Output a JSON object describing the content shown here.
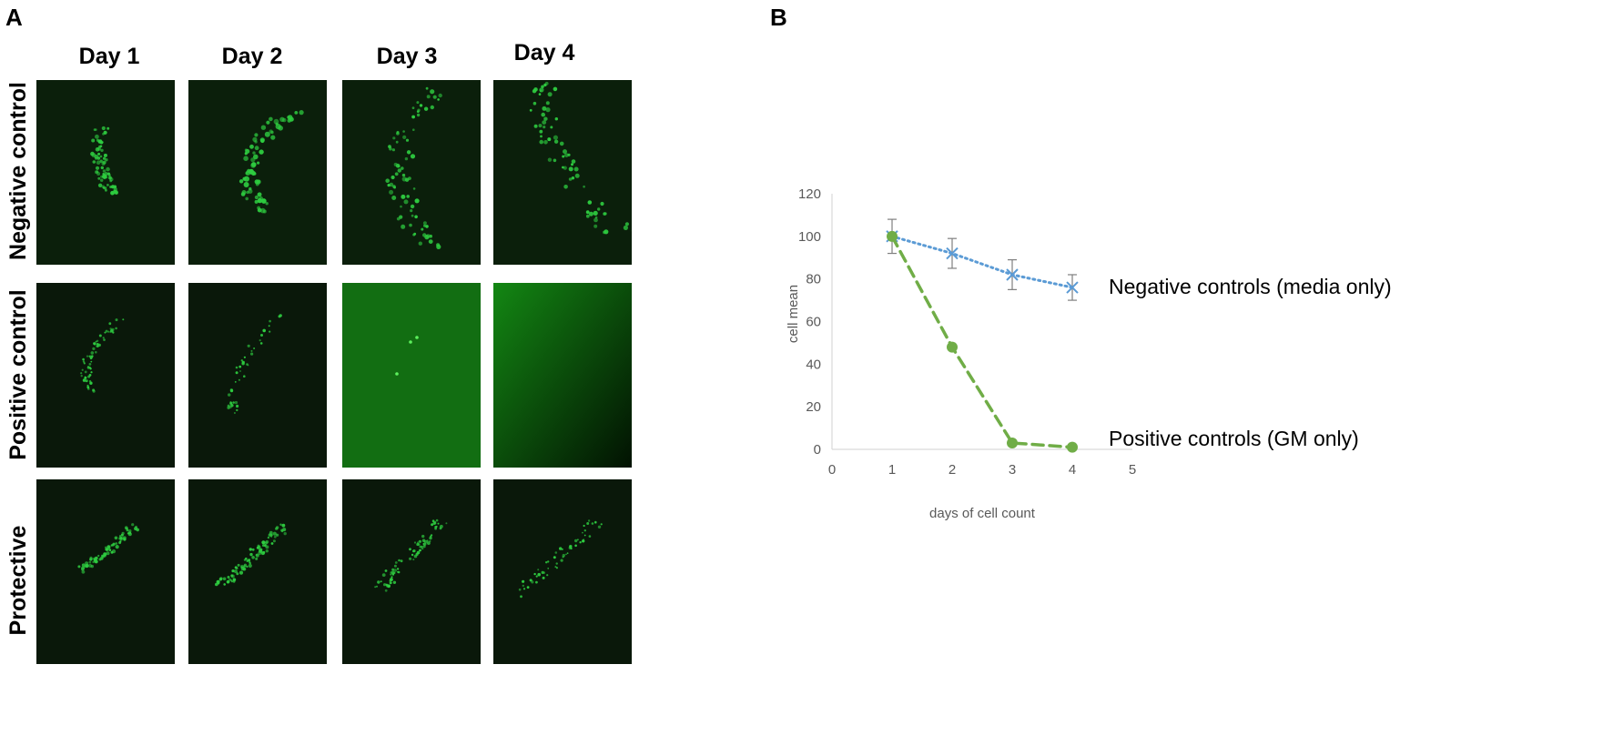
{
  "panels": {
    "a_letter": "A",
    "b_letter": "B"
  },
  "micrographs": {
    "days": [
      "Day 1",
      "Day 2",
      "Day 3",
      "Day 4"
    ],
    "conditions": [
      "Negative control",
      "Positive control",
      "Protective"
    ]
  },
  "chart_data": {
    "type": "line",
    "xlabel": "days of cell count",
    "ylabel": "cell mean",
    "xlim": [
      0,
      5
    ],
    "ylim": [
      0,
      120
    ],
    "xticks": [
      "0",
      "1",
      "2",
      "3",
      "4",
      "5"
    ],
    "yticks": [
      "0",
      "20",
      "40",
      "60",
      "80",
      "100",
      "120"
    ],
    "grid": false,
    "series": [
      {
        "name": "Negative controls (media only)",
        "x": [
          1,
          2,
          3,
          4
        ],
        "values": [
          100,
          92,
          82,
          76
        ],
        "error": [
          8,
          7,
          7,
          6
        ],
        "color": "#5B9BD5",
        "marker": "x",
        "line_style": "dotted"
      },
      {
        "name": "Positive controls (GM only)",
        "x": [
          1,
          2,
          3,
          4
        ],
        "values": [
          100,
          48,
          3,
          1
        ],
        "color": "#70AD47",
        "marker": "circle",
        "line_style": "dashed"
      }
    ]
  },
  "colors": {
    "fluorescence": "#2ecc40",
    "tile_bg": "#020a02"
  }
}
